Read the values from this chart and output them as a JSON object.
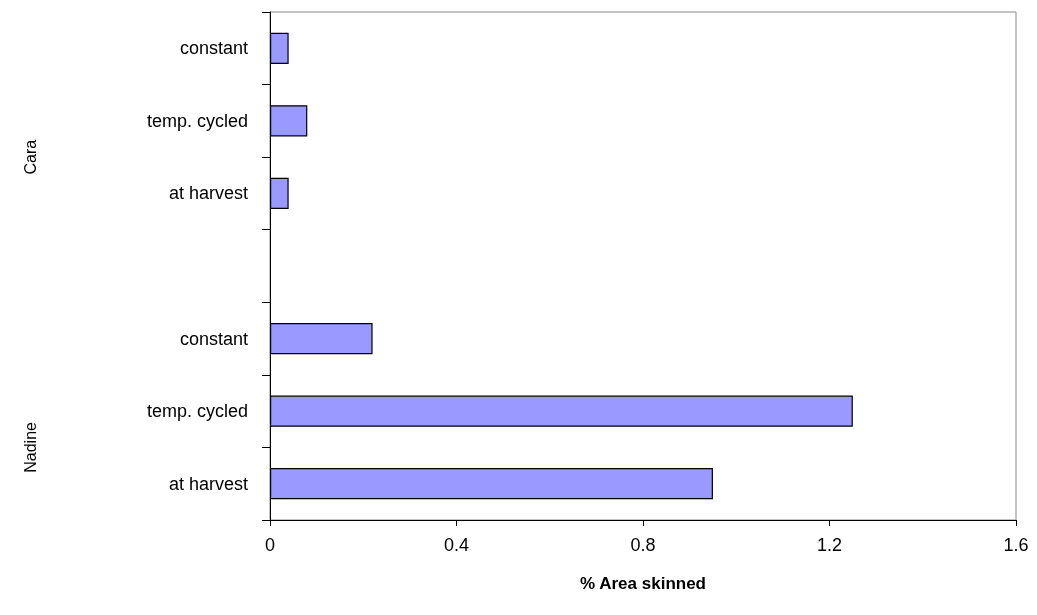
{
  "chart_data": {
    "type": "bar",
    "orientation": "horizontal",
    "xlabel": "% Area skinned",
    "categories": [
      "constant",
      "temp. cycled",
      "at harvest",
      null,
      "constant",
      "temp. cycled",
      "at harvest"
    ],
    "values": [
      0.04,
      0.08,
      0.04,
      null,
      0.22,
      1.25,
      0.95
    ],
    "color": "#9999ff",
    "xlim": [
      0,
      1.6
    ],
    "xticks": [
      0,
      0.4,
      0.8,
      1.2,
      1.6
    ],
    "annotations": [
      "Cara",
      "Nadine"
    ],
    "grid": false
  }
}
